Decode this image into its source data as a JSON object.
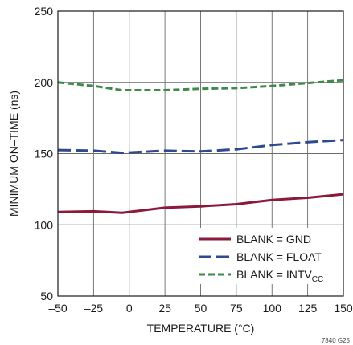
{
  "chart_data": {
    "type": "line",
    "xlabel": "TEMPERATURE (°C)",
    "ylabel": "MINIMUM ON–TIME (ns)",
    "xlim": [
      -50,
      150
    ],
    "ylim": [
      50,
      250
    ],
    "xticks": [
      -50,
      -25,
      0,
      25,
      50,
      75,
      100,
      125,
      150
    ],
    "xtick_labels": [
      "–50",
      "–25",
      "0",
      "25",
      "50",
      "75",
      "100",
      "125",
      "150"
    ],
    "yticks": [
      50,
      100,
      150,
      200,
      250
    ],
    "ytick_labels": [
      "50",
      "100",
      "150",
      "200",
      "250"
    ],
    "grid": true,
    "legend_position": "bottom-right",
    "figure_id": "7840 G25",
    "series": [
      {
        "name": "BLANK = GND",
        "label_main": "BLANK = GND",
        "label_sub": "",
        "color": "#8b1a3a",
        "dash": "solid",
        "x": [
          -50,
          -25,
          -5,
          25,
          50,
          75,
          100,
          125,
          150
        ],
        "y": [
          109,
          109.5,
          108.5,
          112,
          113,
          114.5,
          117.5,
          119,
          121.5
        ]
      },
      {
        "name": "BLANK = FLOAT",
        "label_main": "BLANK = FLOAT",
        "label_sub": "",
        "color": "#2e4a8c",
        "dash": "dashed",
        "x": [
          -50,
          -25,
          -5,
          25,
          50,
          75,
          100,
          125,
          150
        ],
        "y": [
          152.5,
          152,
          150.5,
          152,
          151.5,
          153,
          156,
          158,
          159.5
        ]
      },
      {
        "name": "BLANK = INTVCC",
        "label_main": "BLANK = INTV",
        "label_sub": "CC",
        "color": "#3f8a4a",
        "dash": "dashed",
        "x": [
          -50,
          -25,
          -5,
          25,
          50,
          75,
          100,
          125,
          150
        ],
        "y": [
          200,
          197.5,
          194.5,
          194.5,
          195.5,
          196,
          197.5,
          199.5,
          201.5
        ]
      }
    ]
  }
}
